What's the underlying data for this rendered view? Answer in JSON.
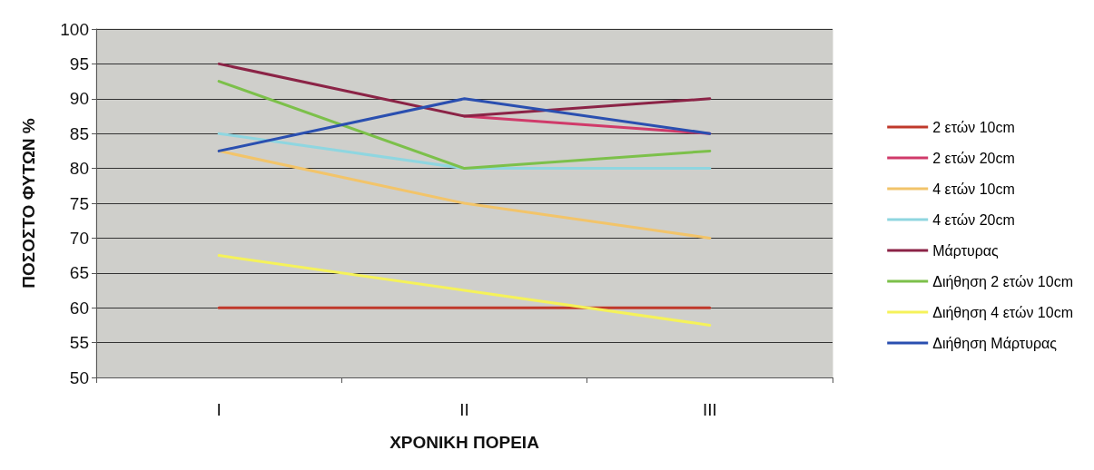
{
  "chart_data": {
    "type": "line",
    "xlabel": "ΧΡΟΝΙΚΗ ΠΟΡΕΙΑ",
    "ylabel": "ΠΟΣΟΣΤΟ ΦΥΤΩΝ %",
    "categories": [
      "I",
      "II",
      "III"
    ],
    "series": [
      {
        "name": "2 ετών 10cm",
        "color": "#c0392b",
        "values": [
          60,
          60,
          60
        ]
      },
      {
        "name": "2 ετών 20cm",
        "color": "#d03a6a",
        "values": [
          null,
          87.5,
          85
        ]
      },
      {
        "name": "4 ετών 10cm",
        "color": "#f2c46a",
        "values": [
          82.5,
          75,
          70
        ]
      },
      {
        "name": "4 ετών 20cm",
        "color": "#8fd6e0",
        "values": [
          85,
          80,
          80
        ]
      },
      {
        "name": "Μάρτυρας",
        "color": "#8b2346",
        "values": [
          95,
          87.5,
          90
        ]
      },
      {
        "name": "Διήθηση 2 ετών 10cm",
        "color": "#7cc04a",
        "values": [
          92.5,
          80,
          82.5
        ]
      },
      {
        "name": "Διήθηση 4 ετών 10cm",
        "color": "#f5f25a",
        "values": [
          67.5,
          62.5,
          57.5
        ]
      },
      {
        "name": "Διήθηση Μάρτυρας",
        "color": "#2a4fb0",
        "values": [
          82.5,
          90,
          85
        ]
      }
    ],
    "ylim": [
      50,
      100
    ],
    "yticks": [
      50,
      55,
      60,
      65,
      70,
      75,
      80,
      85,
      90,
      95,
      100
    ],
    "grid": "y",
    "legend": "right",
    "marker": "none",
    "line_style": "solid"
  }
}
